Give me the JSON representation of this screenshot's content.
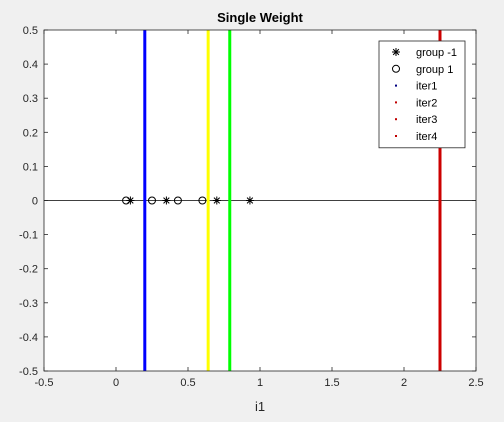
{
  "chart_data": {
    "type": "scatter",
    "title": "Single Weight",
    "xlabel": "i1",
    "ylabel": "",
    "xlim": [
      -0.5,
      2.5
    ],
    "ylim": [
      -0.5,
      0.5
    ],
    "xticks": [
      -0.5,
      0,
      0.5,
      1,
      1.5,
      2,
      2.5
    ],
    "xtick_labels": [
      "-0.5",
      "0",
      "0.5",
      "1",
      "1.5",
      "2",
      "2.5"
    ],
    "yticks": [
      -0.5,
      -0.4,
      -0.3,
      -0.2,
      -0.1,
      0,
      0.1,
      0.2,
      0.3,
      0.4,
      0.5
    ],
    "ytick_labels": [
      "-0.5",
      "-0.4",
      "-0.3",
      "-0.2",
      "-0.1",
      "0",
      "0.1",
      "0.2",
      "0.3",
      "0.4",
      "0.5"
    ],
    "grid": false,
    "legend_position": "top-right",
    "zero_line": {
      "y": 0,
      "color": "#000000"
    },
    "series": [
      {
        "name": "group -1",
        "marker": "star",
        "color": "#000000",
        "points": [
          [
            0.1,
            0
          ],
          [
            0.35,
            0
          ],
          [
            0.7,
            0
          ],
          [
            0.93,
            0
          ]
        ]
      },
      {
        "name": "group 1",
        "marker": "circle",
        "color": "#000000",
        "points": [
          [
            0.07,
            0
          ],
          [
            0.25,
            0
          ],
          [
            0.43,
            0
          ],
          [
            0.6,
            0
          ]
        ]
      }
    ],
    "boundaries": [
      {
        "name": "iter1",
        "x": 0.2,
        "color": "#0000ff",
        "legend_color": "#000080"
      },
      {
        "name": "iter2",
        "x": 0.64,
        "color": "#ffff00",
        "legend_color": "#c00000"
      },
      {
        "name": "iter3",
        "x": 0.79,
        "color": "#00ff00",
        "legend_color": "#c00000"
      },
      {
        "name": "iter4",
        "x": 2.25,
        "color": "#cc0000",
        "legend_color": "#c00000"
      }
    ]
  }
}
